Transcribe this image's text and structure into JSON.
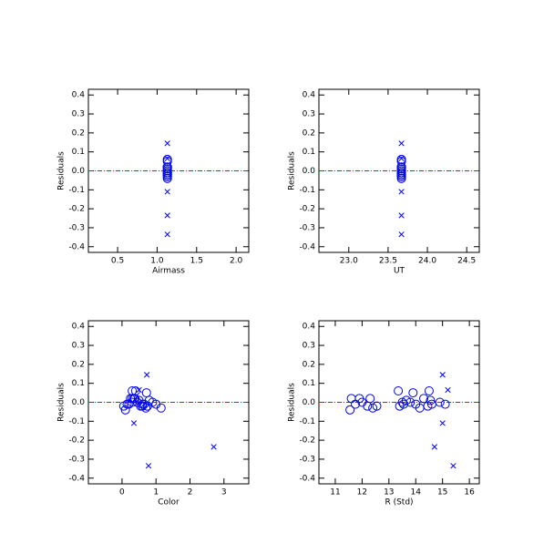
{
  "chart_data": [
    {
      "type": "scatter",
      "xlabel": "Airmass",
      "ylabel": "Residuals",
      "xlim": [
        0.13,
        2.16
      ],
      "ylim": [
        -0.43,
        0.43
      ],
      "xticks": [
        0.5,
        {
          "value": 1,
          "label": "1.0"
        },
        1.5,
        {
          "value": 2,
          "label": "2.0"
        }
      ],
      "yticks": [
        0.4,
        0.3,
        0.2,
        0.1,
        {
          "value": 0,
          "label": "0.0"
        },
        -0.1,
        -0.2,
        -0.3,
        -0.4
      ],
      "hline": 0,
      "hline_color": "#ff0000",
      "series": [
        {
          "marker": "circle",
          "color": "#0000ff",
          "x": [
            1.13,
            1.13,
            1.13,
            1.13,
            1.13,
            1.13,
            1.13,
            1.13,
            1.13,
            1.13,
            1.13,
            1.13,
            1.13,
            1.13,
            1.13,
            1.13,
            1.13,
            1.13,
            1.13,
            1.13,
            1.13,
            1.13,
            1.13,
            1.13,
            1.13
          ],
          "values": [
            -0.04,
            0.02,
            -0.01,
            0.02,
            0.0,
            -0.02,
            0.02,
            -0.03,
            -0.02,
            0.06,
            -0.02,
            0.0,
            -0.01,
            0.01,
            0.0,
            0.05,
            -0.01,
            -0.03,
            0.02,
            0.06,
            0.01,
            -0.01,
            0.0,
            -0.01,
            -0.02
          ]
        },
        {
          "marker": "x",
          "color": "#0000ff",
          "x": [
            1.13,
            1.13,
            1.13,
            1.13,
            1.13
          ],
          "values": [
            0.145,
            0.065,
            -0.11,
            -0.235,
            -0.335
          ]
        }
      ]
    },
    {
      "type": "scatter",
      "xlabel": "UT",
      "ylabel": "Residuals",
      "xlim": [
        22.62,
        24.66
      ],
      "ylim": [
        -0.43,
        0.43
      ],
      "xticks": [
        {
          "value": 23,
          "label": "23.0"
        },
        23.5,
        {
          "value": 24,
          "label": "24.0"
        },
        24.5
      ],
      "yticks": [
        0.4,
        0.3,
        0.2,
        0.1,
        {
          "value": 0,
          "label": "0.0"
        },
        -0.1,
        -0.2,
        -0.3,
        -0.4
      ],
      "hline": 0,
      "hline_color": "#ff0000",
      "series": [
        {
          "marker": "circle",
          "color": "#0000ff",
          "x": [
            23.67,
            23.67,
            23.67,
            23.67,
            23.67,
            23.67,
            23.67,
            23.67,
            23.67,
            23.67,
            23.67,
            23.67,
            23.67,
            23.67,
            23.67,
            23.67,
            23.67,
            23.67,
            23.67,
            23.67,
            23.67,
            23.67,
            23.67,
            23.67,
            23.67
          ],
          "values": [
            -0.04,
            0.02,
            -0.01,
            0.02,
            0.0,
            -0.02,
            0.02,
            -0.03,
            -0.02,
            0.06,
            -0.02,
            0.0,
            -0.01,
            0.01,
            0.0,
            0.05,
            -0.01,
            -0.03,
            0.02,
            0.06,
            0.01,
            -0.01,
            0.0,
            -0.01,
            -0.02
          ]
        },
        {
          "marker": "x",
          "color": "#0000ff",
          "x": [
            23.67,
            23.67,
            23.67,
            23.67,
            23.67
          ],
          "values": [
            0.145,
            0.065,
            -0.11,
            -0.235,
            -0.335
          ]
        }
      ]
    },
    {
      "type": "scatter",
      "xlabel": "Color",
      "ylabel": "Residuals",
      "xlim": [
        -0.99,
        3.73
      ],
      "ylim": [
        -0.43,
        0.43
      ],
      "xticks": [
        0,
        1,
        2,
        3
      ],
      "yticks": [
        0.4,
        0.3,
        0.2,
        0.1,
        {
          "value": 0,
          "label": "0.0"
        },
        -0.1,
        -0.2,
        -0.3,
        -0.4
      ],
      "hline": 0,
      "hline_color": "#ff0000",
      "series": [
        {
          "marker": "circle",
          "color": "#0000ff",
          "x": [
            0.1,
            0.3,
            0.2,
            0.35,
            0.45,
            0.6,
            0.25,
            0.7,
            0.55,
            0.4,
            0.05,
            0.3,
            0.65,
            0.5,
            0.9,
            0.72,
            0.15,
            1.15,
            0.38,
            0.3,
            0.8,
            1.0,
            0.45,
            0.6,
            0.75
          ],
          "values": [
            -0.04,
            0.02,
            -0.01,
            0.02,
            0.0,
            -0.02,
            0.02,
            -0.03,
            -0.02,
            0.06,
            -0.02,
            0.0,
            -0.01,
            0.01,
            0.0,
            0.05,
            -0.01,
            -0.03,
            0.02,
            0.06,
            0.01,
            -0.01,
            0.0,
            -0.01,
            -0.02
          ]
        },
        {
          "marker": "x",
          "color": "#0000ff",
          "x": [
            0.73,
            0.5,
            0.35,
            2.7,
            0.78
          ],
          "values": [
            0.145,
            0.065,
            -0.11,
            -0.235,
            -0.335
          ]
        }
      ]
    },
    {
      "type": "scatter",
      "xlabel": "R (Std)",
      "ylabel": "Residuals",
      "xlim": [
        10.39,
        16.37
      ],
      "ylim": [
        -0.43,
        0.43
      ],
      "xticks": [
        11,
        12,
        13,
        14,
        15,
        16
      ],
      "yticks": [
        0.4,
        0.3,
        0.2,
        0.1,
        {
          "value": 0,
          "label": "0.0"
        },
        -0.1,
        -0.2,
        -0.3,
        -0.4
      ],
      "hline": 0,
      "hline_color": "#ff0000",
      "series": [
        {
          "marker": "circle",
          "color": "#0000ff",
          "x": [
            11.55,
            11.6,
            11.75,
            11.9,
            12.0,
            12.2,
            12.3,
            12.4,
            12.55,
            13.35,
            13.4,
            13.5,
            13.55,
            13.65,
            13.8,
            13.9,
            14.0,
            14.15,
            14.3,
            14.5,
            14.55,
            14.6,
            14.9,
            15.1,
            14.45
          ],
          "values": [
            -0.04,
            0.02,
            -0.01,
            0.02,
            0.0,
            -0.02,
            0.02,
            -0.03,
            -0.02,
            0.06,
            -0.02,
            0.0,
            -0.01,
            0.01,
            0.0,
            0.05,
            -0.01,
            -0.03,
            0.02,
            0.06,
            0.01,
            -0.01,
            0.0,
            -0.01,
            -0.02
          ]
        },
        {
          "marker": "x",
          "color": "#0000ff",
          "x": [
            15.0,
            15.2,
            15.0,
            14.7,
            15.4
          ],
          "values": [
            0.145,
            0.065,
            -0.11,
            -0.235,
            -0.335
          ]
        }
      ]
    }
  ]
}
